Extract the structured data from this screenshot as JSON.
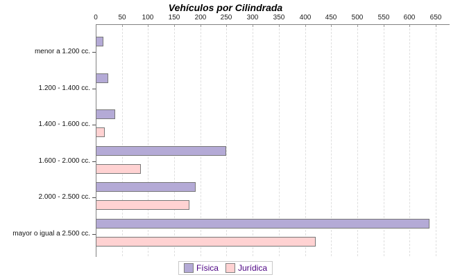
{
  "chart_data": {
    "type": "bar",
    "orientation": "horizontal",
    "title": "Vehículos por Cilindrada",
    "xlabel": "",
    "ylabel": "",
    "categories": [
      "menor a 1.200 cc.",
      "1.200 - 1.400 cc.",
      "1.400 - 1.600 cc.",
      "1.600 - 2.000 cc.",
      "2.000 - 2.500 cc.",
      "mayor o igual a 2.500 cc."
    ],
    "series": [
      {
        "name": "Física",
        "color": "#b4aad6",
        "values": [
          14,
          24,
          37,
          250,
          191,
          638
        ]
      },
      {
        "name": "Jurídica",
        "color": "#ffd2d2",
        "values": [
          0,
          0,
          17,
          86,
          179,
          420
        ]
      }
    ],
    "xlim": [
      0,
      650
    ],
    "x_ticks": [
      0,
      50,
      100,
      150,
      200,
      250,
      300,
      350,
      400,
      450,
      500,
      550,
      600,
      650
    ],
    "grid": "vertical-dashed",
    "legend_position": "bottom",
    "bar_border_color": "#777777",
    "axis_color": "#808080",
    "legend_text_color": "#4b0082"
  }
}
